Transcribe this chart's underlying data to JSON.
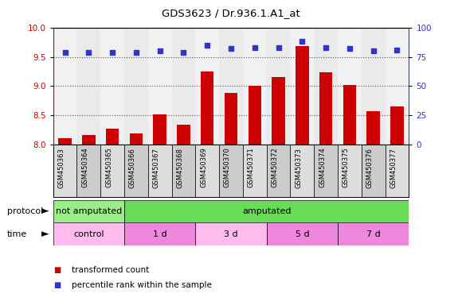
{
  "title": "GDS3623 / Dr.936.1.A1_at",
  "samples": [
    "GSM450363",
    "GSM450364",
    "GSM450365",
    "GSM450366",
    "GSM450367",
    "GSM450368",
    "GSM450369",
    "GSM450370",
    "GSM450371",
    "GSM450372",
    "GSM450373",
    "GSM450374",
    "GSM450375",
    "GSM450376",
    "GSM450377"
  ],
  "transformed_count": [
    8.12,
    8.17,
    8.27,
    8.2,
    8.52,
    8.35,
    9.25,
    8.88,
    9.01,
    9.15,
    9.68,
    9.23,
    9.02,
    8.58,
    8.65
  ],
  "percentile_rank": [
    79,
    79,
    79,
    79,
    80,
    79,
    85,
    82,
    83,
    83,
    88,
    83,
    82,
    80,
    81
  ],
  "bar_color": "#cc0000",
  "dot_color": "#3333cc",
  "ylim_left": [
    8.0,
    10.0
  ],
  "ylim_right": [
    0,
    100
  ],
  "yticks_left": [
    8.0,
    8.5,
    9.0,
    9.5,
    10.0
  ],
  "yticks_right": [
    0,
    25,
    50,
    75,
    100
  ],
  "protocol_labels": [
    {
      "label": "not amputated",
      "start": 0,
      "end": 3,
      "color": "#99ee88"
    },
    {
      "label": "amputated",
      "start": 3,
      "end": 15,
      "color": "#66dd55"
    }
  ],
  "time_labels": [
    {
      "label": "control",
      "start": 0,
      "end": 3,
      "color": "#ffbbee"
    },
    {
      "label": "1 d",
      "start": 3,
      "end": 6,
      "color": "#ee88dd"
    },
    {
      "label": "3 d",
      "start": 6,
      "end": 9,
      "color": "#ffbbee"
    },
    {
      "label": "5 d",
      "start": 9,
      "end": 12,
      "color": "#ee88dd"
    },
    {
      "label": "7 d",
      "start": 12,
      "end": 15,
      "color": "#ee88dd"
    }
  ],
  "legend_items": [
    {
      "label": "transformed count",
      "color": "#cc0000"
    },
    {
      "label": "percentile rank within the sample",
      "color": "#3333cc"
    }
  ],
  "grid_color": "#555555",
  "bg_color": "#ffffff",
  "plot_bg": "#ffffff",
  "col_bg_even": "#dddddd",
  "col_bg_odd": "#cccccc"
}
